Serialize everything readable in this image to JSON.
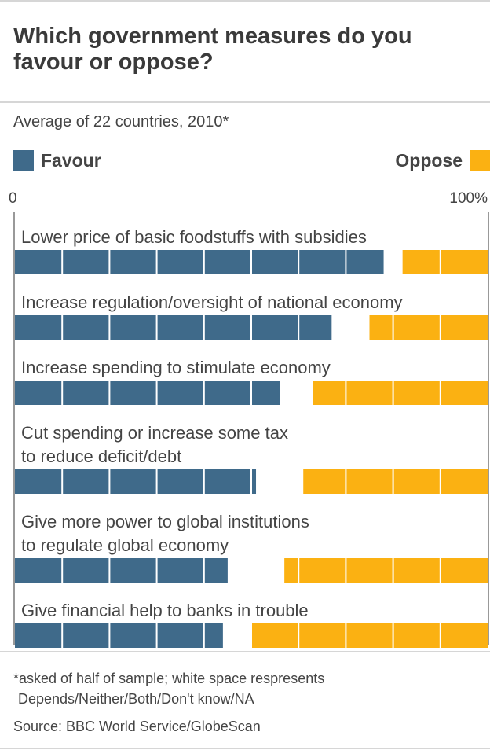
{
  "header": {
    "title_line1": "Which government measures do you",
    "title_line2": "favour or oppose?"
  },
  "subtitle": "Average of 22 countries, 2010*",
  "legend": {
    "favour": {
      "label": "Favour",
      "color": "#3f6a8a"
    },
    "oppose": {
      "label": "Oppose",
      "color": "#fbb112"
    }
  },
  "chart_data": {
    "type": "bar",
    "orientation": "horizontal",
    "stacked": true,
    "axis_ticks": [
      "0",
      "100%"
    ],
    "xlim": [
      0,
      100
    ],
    "categories": [
      [
        "Lower price of basic foodstuffs with subsidies"
      ],
      [
        "Increase regulation/oversight of national economy"
      ],
      [
        "Increase spending to stimulate economy"
      ],
      [
        "Cut spending or increase some tax",
        "to reduce deficit/debt"
      ],
      [
        "Give more power to global institutions",
        "to regulate global economy"
      ],
      [
        "Give financial help to banks in trouble"
      ]
    ],
    "series": [
      {
        "name": "Favour",
        "color": "#3f6a8a",
        "values": [
          78,
          67,
          56,
          51,
          45,
          44
        ]
      },
      {
        "name": "Oppose",
        "color": "#fbb112",
        "values": [
          18,
          25,
          37,
          39,
          43,
          50
        ]
      }
    ],
    "grid": true
  },
  "footnote": {
    "line1": "*asked of half of sample; white space respresents",
    "line2": "Depends/Neither/Both/Don't know/NA"
  },
  "source": "Source: BBC World Service/GlobeScan"
}
